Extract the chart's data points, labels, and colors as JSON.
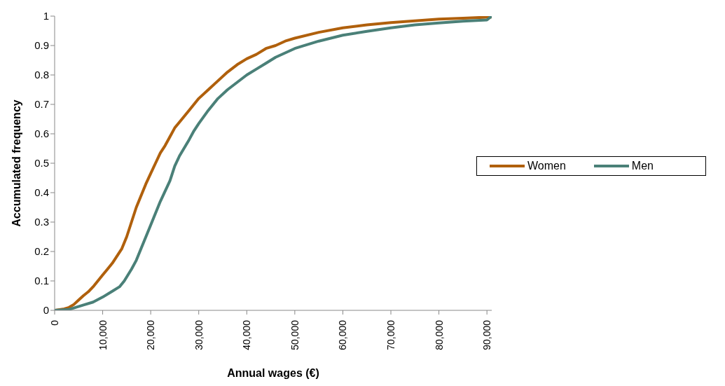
{
  "chart_data": {
    "type": "line",
    "xlabel": "Annual wages (€)",
    "ylabel": "Accumulated frequency",
    "xlim": [
      0,
      91000
    ],
    "xticks": [
      {
        "value": 0,
        "label": "0"
      },
      {
        "value": 10000,
        "label": "10,000"
      },
      {
        "value": 20000,
        "label": "20,000"
      },
      {
        "value": 30000,
        "label": "30,000"
      },
      {
        "value": 40000,
        "label": "40,000"
      },
      {
        "value": 50000,
        "label": "50,000"
      },
      {
        "value": 60000,
        "label": "60,000"
      },
      {
        "value": 70000,
        "label": "70,000"
      },
      {
        "value": 80000,
        "label": "80,000"
      },
      {
        "value": 90000,
        "label": "90,000"
      }
    ],
    "ylim": [
      0,
      1
    ],
    "yticks": [
      0,
      0.1,
      0.2,
      0.3,
      0.4,
      0.5,
      0.6,
      0.7,
      0.8,
      0.9,
      1
    ],
    "grid": false,
    "legend": "right",
    "marker": "none",
    "line_style": "solid",
    "series": [
      {
        "name": "Women",
        "color": "#b0600c",
        "x": [
          0,
          2000,
          3000,
          4000,
          5000,
          6000,
          7000,
          8000,
          9000,
          10000,
          11000,
          12000,
          13000,
          14000,
          15000,
          16000,
          17000,
          18000,
          19000,
          20000,
          21000,
          22000,
          23000,
          24000,
          25000,
          26000,
          28000,
          30000,
          32000,
          34000,
          36000,
          38000,
          40000,
          42000,
          44000,
          46000,
          48000,
          50000,
          55000,
          60000,
          65000,
          70000,
          75000,
          80000,
          85000,
          91000
        ],
        "values": [
          0,
          0.005,
          0.01,
          0.02,
          0.035,
          0.05,
          0.063,
          0.08,
          0.1,
          0.12,
          0.14,
          0.16,
          0.185,
          0.21,
          0.25,
          0.3,
          0.35,
          0.39,
          0.43,
          0.465,
          0.5,
          0.535,
          0.56,
          0.59,
          0.62,
          0.64,
          0.68,
          0.72,
          0.75,
          0.78,
          0.81,
          0.835,
          0.855,
          0.87,
          0.89,
          0.9,
          0.915,
          0.925,
          0.945,
          0.96,
          0.97,
          0.978,
          0.984,
          0.99,
          0.993,
          0.997
        ]
      },
      {
        "name": "Men",
        "color": "#4a8078",
        "x": [
          0,
          3000,
          4000,
          6000,
          8000,
          10000,
          12000,
          13500,
          14500,
          16000,
          17000,
          18000,
          20000,
          22000,
          24000,
          25000,
          26000,
          28000,
          29000,
          30000,
          32000,
          34000,
          36000,
          38000,
          40000,
          42000,
          44000,
          46000,
          48000,
          50000,
          55000,
          60000,
          65000,
          70000,
          75000,
          80000,
          85000,
          90000,
          91000
        ],
        "values": [
          0,
          0.003,
          0.008,
          0.018,
          0.028,
          0.045,
          0.065,
          0.08,
          0.1,
          0.14,
          0.17,
          0.21,
          0.29,
          0.37,
          0.44,
          0.49,
          0.525,
          0.58,
          0.61,
          0.635,
          0.68,
          0.72,
          0.75,
          0.775,
          0.8,
          0.82,
          0.84,
          0.86,
          0.875,
          0.89,
          0.915,
          0.935,
          0.948,
          0.96,
          0.97,
          0.977,
          0.983,
          0.987,
          1
        ]
      }
    ]
  }
}
